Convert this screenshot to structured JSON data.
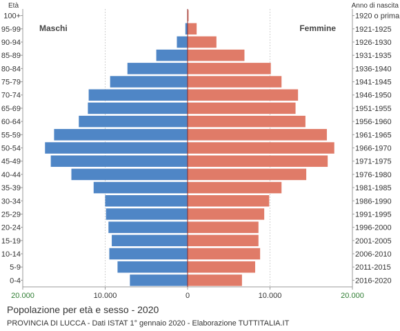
{
  "chart_data": {
    "type": "bar",
    "title": "Popolazione per età e sesso - 2020",
    "subtitle": "PROVINCIA DI LUCCA - Dati ISTAT 1° gennaio 2020 - Elaborazione TUTTITALIA.IT",
    "left_axis_title": "Età",
    "right_axis_title": "Anno di nascita",
    "categories": [
      "100+",
      "95-99",
      "90-94",
      "85-89",
      "80-84",
      "75-79",
      "70-74",
      "65-69",
      "60-64",
      "55-59",
      "50-54",
      "45-49",
      "40-44",
      "35-39",
      "30-34",
      "25-29",
      "20-24",
      "15-19",
      "10-14",
      "5-9",
      "0-4"
    ],
    "birth_years": [
      "1920 o prima",
      "1921-1925",
      "1926-1930",
      "1931-1935",
      "1936-1940",
      "1941-1945",
      "1946-1950",
      "1951-1955",
      "1956-1960",
      "1961-1965",
      "1966-1970",
      "1971-1975",
      "1976-1980",
      "1981-1985",
      "1986-1990",
      "1991-1995",
      "1996-2000",
      "2001-2005",
      "2006-2010",
      "2011-2015",
      "2016-2020"
    ],
    "series": [
      {
        "name": "Maschi",
        "color": "#4f86c6",
        "values": [
          20,
          270,
          1300,
          3800,
          7300,
          9400,
          12000,
          12100,
          13200,
          16200,
          17300,
          16600,
          14100,
          11400,
          10000,
          9900,
          9600,
          9200,
          9500,
          8500,
          7000
        ]
      },
      {
        "name": "Femmine",
        "color": "#e07b68",
        "values": [
          120,
          1100,
          3500,
          6900,
          10100,
          11400,
          13400,
          13100,
          14300,
          16900,
          17800,
          17000,
          14400,
          11400,
          9900,
          9300,
          8600,
          8600,
          8800,
          8200,
          6600
        ]
      }
    ],
    "xlim": [
      -20000,
      20000
    ],
    "xticks": [
      {
        "value": -20000,
        "label": "20.000"
      },
      {
        "value": -10000,
        "label": "10.000"
      },
      {
        "value": 0,
        "label": "0"
      },
      {
        "value": 10000,
        "label": "10.000"
      },
      {
        "value": 20000,
        "label": "20.000"
      }
    ],
    "tick_label_colors": {
      "outer": "#2e7d32",
      "inner": "#333333"
    },
    "grid": true
  }
}
